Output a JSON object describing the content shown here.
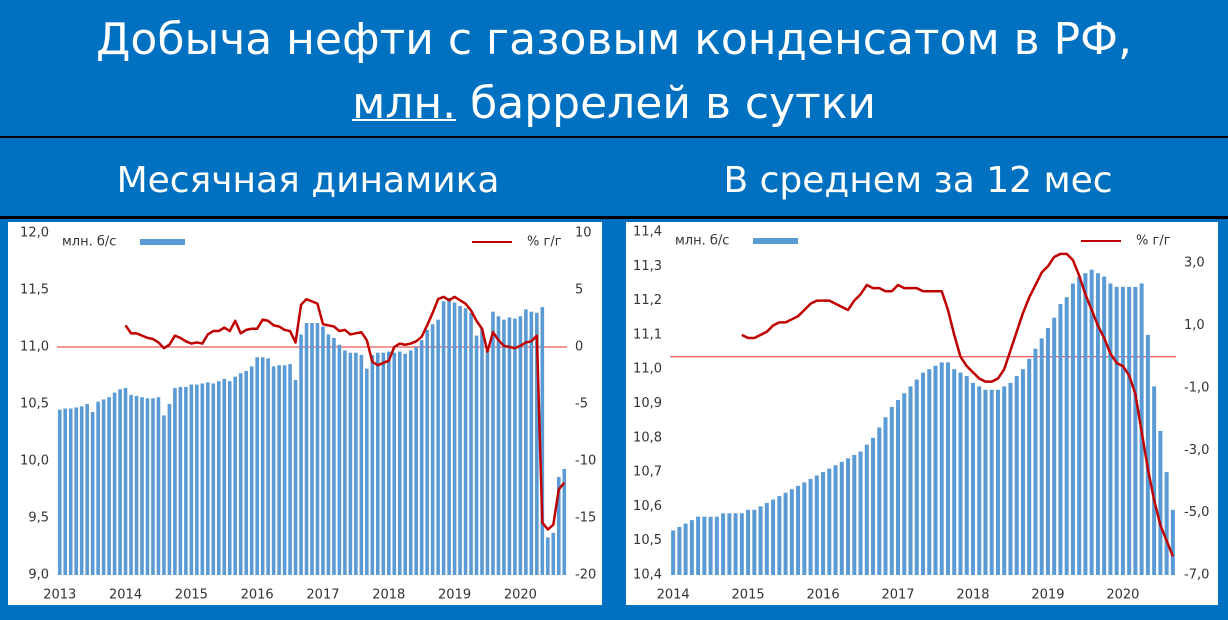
{
  "header": {
    "line1": "Добыча нефти с газовым конденсатом в РФ,",
    "line2_underlined": "млн.",
    "line2_rest": "баррелей в сутки"
  },
  "chart_data": [
    {
      "type": "combo",
      "title": "Месячная динамика",
      "grid": false,
      "zero_line": true,
      "legend": "top",
      "categories": [
        "2013",
        null,
        null,
        null,
        null,
        null,
        null,
        null,
        null,
        null,
        null,
        null,
        "2014",
        null,
        null,
        null,
        null,
        null,
        null,
        null,
        null,
        null,
        null,
        null,
        "2015",
        null,
        null,
        null,
        null,
        null,
        null,
        null,
        null,
        null,
        null,
        null,
        "2016",
        null,
        null,
        null,
        null,
        null,
        null,
        null,
        null,
        null,
        null,
        null,
        "2017",
        null,
        null,
        null,
        null,
        null,
        null,
        null,
        null,
        null,
        null,
        null,
        "2018",
        null,
        null,
        null,
        null,
        null,
        null,
        null,
        null,
        null,
        null,
        null,
        "2019",
        null,
        null,
        null,
        null,
        null,
        null,
        null,
        null,
        null,
        null,
        null,
        "2020",
        null,
        null,
        null,
        null,
        null,
        null,
        null,
        null
      ],
      "ylim": [
        9.0,
        12.0
      ],
      "yticks": [
        {
          "value": 9.0,
          "label": "9,0"
        },
        {
          "value": 9.5,
          "label": "9,5"
        },
        {
          "value": 10.0,
          "label": "10,0"
        },
        {
          "value": 10.5,
          "label": "10,5"
        },
        {
          "value": 11.0,
          "label": "11,0"
        },
        {
          "value": 11.5,
          "label": "11,5"
        },
        {
          "value": 12.0,
          "label": "12,0"
        }
      ],
      "y2lim": [
        -20,
        10
      ],
      "y2ticks": [
        -20,
        -15,
        -10,
        -5,
        0,
        5,
        10
      ],
      "series": [
        {
          "name": "млн. б/с",
          "type": "bar",
          "color": "#5b9bd5",
          "values": [
            10.45,
            10.46,
            10.46,
            10.47,
            10.48,
            10.5,
            10.43,
            10.52,
            10.54,
            10.56,
            10.6,
            10.63,
            10.64,
            10.58,
            10.57,
            10.56,
            10.55,
            10.55,
            10.56,
            10.4,
            10.5,
            10.64,
            10.65,
            10.65,
            10.67,
            10.67,
            10.68,
            10.69,
            10.68,
            10.7,
            10.72,
            10.7,
            10.74,
            10.77,
            10.79,
            10.83,
            10.91,
            10.91,
            10.9,
            10.83,
            10.84,
            10.84,
            10.85,
            10.71,
            11.11,
            11.21,
            11.21,
            11.21,
            11.18,
            11.11,
            11.08,
            11.02,
            10.97,
            10.95,
            10.95,
            10.93,
            10.81,
            10.93,
            10.95,
            10.95,
            10.96,
            10.95,
            10.96,
            10.94,
            10.97,
            11.0,
            11.06,
            11.15,
            11.2,
            11.24,
            11.4,
            11.43,
            11.39,
            11.36,
            11.34,
            11.3,
            11.1,
            11.16,
            10.97,
            11.31,
            11.27,
            11.24,
            11.26,
            11.25,
            11.27,
            11.33,
            11.31,
            11.3,
            11.35,
            9.33,
            9.37,
            9.86,
            9.93
          ]
        },
        {
          "name": "% г/г",
          "type": "line",
          "axis": "y2",
          "color": "#c00000",
          "values": [
            null,
            null,
            null,
            null,
            null,
            null,
            null,
            null,
            null,
            null,
            null,
            null,
            1.9,
            1.2,
            1.2,
            1.0,
            0.8,
            0.7,
            0.4,
            -0.1,
            0.2,
            1.0,
            0.8,
            0.5,
            0.3,
            0.4,
            0.3,
            1.1,
            1.4,
            1.4,
            1.7,
            1.4,
            2.3,
            1.2,
            1.5,
            1.6,
            1.6,
            2.4,
            2.3,
            1.9,
            1.8,
            1.5,
            1.4,
            0.4,
            3.7,
            4.2,
            4.0,
            3.8,
            2.0,
            1.9,
            1.8,
            1.4,
            1.5,
            1.1,
            1.2,
            1.3,
            0.6,
            -1.3,
            -1.6,
            -1.4,
            -1.2,
            0.0,
            0.3,
            0.2,
            0.3,
            0.5,
            0.9,
            1.9,
            3.0,
            4.2,
            4.4,
            4.1,
            4.4,
            4.1,
            3.8,
            3.2,
            2.3,
            1.6,
            -0.4,
            1.3,
            0.6,
            0.1,
            0.0,
            -0.1,
            0.1,
            0.4,
            0.5,
            1.0,
            -15.4,
            -16.0,
            -15.6,
            -12.5,
            -11.9
          ]
        }
      ]
    },
    {
      "type": "combo",
      "title": "В среднем за 12 мес",
      "grid": false,
      "zero_line": true,
      "legend": "top",
      "categories": [
        "2014",
        null,
        null,
        null,
        null,
        null,
        null,
        null,
        null,
        null,
        null,
        null,
        "2015",
        null,
        null,
        null,
        null,
        null,
        null,
        null,
        null,
        null,
        null,
        null,
        "2016",
        null,
        null,
        null,
        null,
        null,
        null,
        null,
        null,
        null,
        null,
        null,
        "2017",
        null,
        null,
        null,
        null,
        null,
        null,
        null,
        null,
        null,
        null,
        null,
        "2018",
        null,
        null,
        null,
        null,
        null,
        null,
        null,
        null,
        null,
        null,
        null,
        "2019",
        null,
        null,
        null,
        null,
        null,
        null,
        null,
        null,
        null,
        null,
        null,
        "2020",
        null,
        null,
        null,
        null,
        null,
        null,
        null,
        null
      ],
      "ylim": [
        10.4,
        11.4
      ],
      "yticks": [
        {
          "value": 10.4,
          "label": "10,4"
        },
        {
          "value": 10.5,
          "label": "10,5"
        },
        {
          "value": 10.6,
          "label": "10,6"
        },
        {
          "value": 10.7,
          "label": "10,7"
        },
        {
          "value": 10.8,
          "label": "10,8"
        },
        {
          "value": 10.9,
          "label": "10,9"
        },
        {
          "value": 11.0,
          "label": "11,0"
        },
        {
          "value": 11.1,
          "label": "11,1"
        },
        {
          "value": 11.2,
          "label": "11,2"
        },
        {
          "value": 11.3,
          "label": "11,3"
        },
        {
          "value": 11.4,
          "label": "11,4"
        }
      ],
      "y2lim": [
        -7.0,
        4.0
      ],
      "y2ticks": [
        {
          "value": -7.0,
          "label": "-7,0"
        },
        {
          "value": -5.0,
          "label": "-5,0"
        },
        {
          "value": -3.0,
          "label": "-3,0"
        },
        {
          "value": -1.0,
          "label": "-1,0"
        },
        {
          "value": 1.0,
          "label": "1,0"
        },
        {
          "value": 3.0,
          "label": "3,0"
        }
      ],
      "series": [
        {
          "name": "млн. б/с",
          "type": "bar",
          "color": "#5b9bd5",
          "values": [
            10.53,
            10.54,
            10.55,
            10.56,
            10.57,
            10.57,
            10.57,
            10.57,
            10.58,
            10.58,
            10.58,
            10.58,
            10.59,
            10.59,
            10.6,
            10.61,
            10.62,
            10.63,
            10.64,
            10.65,
            10.66,
            10.67,
            10.68,
            10.69,
            10.7,
            10.71,
            10.72,
            10.73,
            10.74,
            10.75,
            10.76,
            10.78,
            10.8,
            10.83,
            10.86,
            10.89,
            10.91,
            10.93,
            10.95,
            10.97,
            10.99,
            11.0,
            11.01,
            11.02,
            11.02,
            11.0,
            10.99,
            10.98,
            10.96,
            10.95,
            10.94,
            10.94,
            10.94,
            10.95,
            10.96,
            10.98,
            11.0,
            11.03,
            11.06,
            11.09,
            11.12,
            11.15,
            11.19,
            11.21,
            11.25,
            11.27,
            11.28,
            11.29,
            11.28,
            11.27,
            11.25,
            11.24,
            11.24,
            11.24,
            11.24,
            11.25,
            11.1,
            10.95,
            10.82,
            10.7,
            10.59
          ]
        },
        {
          "name": "% г/г",
          "type": "line",
          "axis": "y2",
          "color": "#c00000",
          "values": [
            null,
            null,
            null,
            null,
            null,
            null,
            null,
            null,
            null,
            null,
            null,
            0.7,
            0.6,
            0.6,
            0.7,
            0.8,
            1.0,
            1.1,
            1.1,
            1.2,
            1.3,
            1.5,
            1.7,
            1.8,
            1.8,
            1.8,
            1.7,
            1.6,
            1.5,
            1.8,
            2.0,
            2.3,
            2.2,
            2.2,
            2.1,
            2.1,
            2.3,
            2.2,
            2.2,
            2.2,
            2.1,
            2.1,
            2.1,
            2.1,
            1.5,
            0.7,
            0.0,
            -0.3,
            -0.5,
            -0.7,
            -0.8,
            -0.8,
            -0.7,
            -0.4,
            0.2,
            0.8,
            1.4,
            1.9,
            2.3,
            2.7,
            2.9,
            3.2,
            3.3,
            3.3,
            3.1,
            2.6,
            2.0,
            1.5,
            1.0,
            0.6,
            0.1,
            -0.2,
            -0.3,
            -0.6,
            -1.2,
            -2.4,
            -3.6,
            -4.6,
            -5.4,
            -5.9,
            -6.4
          ]
        }
      ]
    }
  ]
}
